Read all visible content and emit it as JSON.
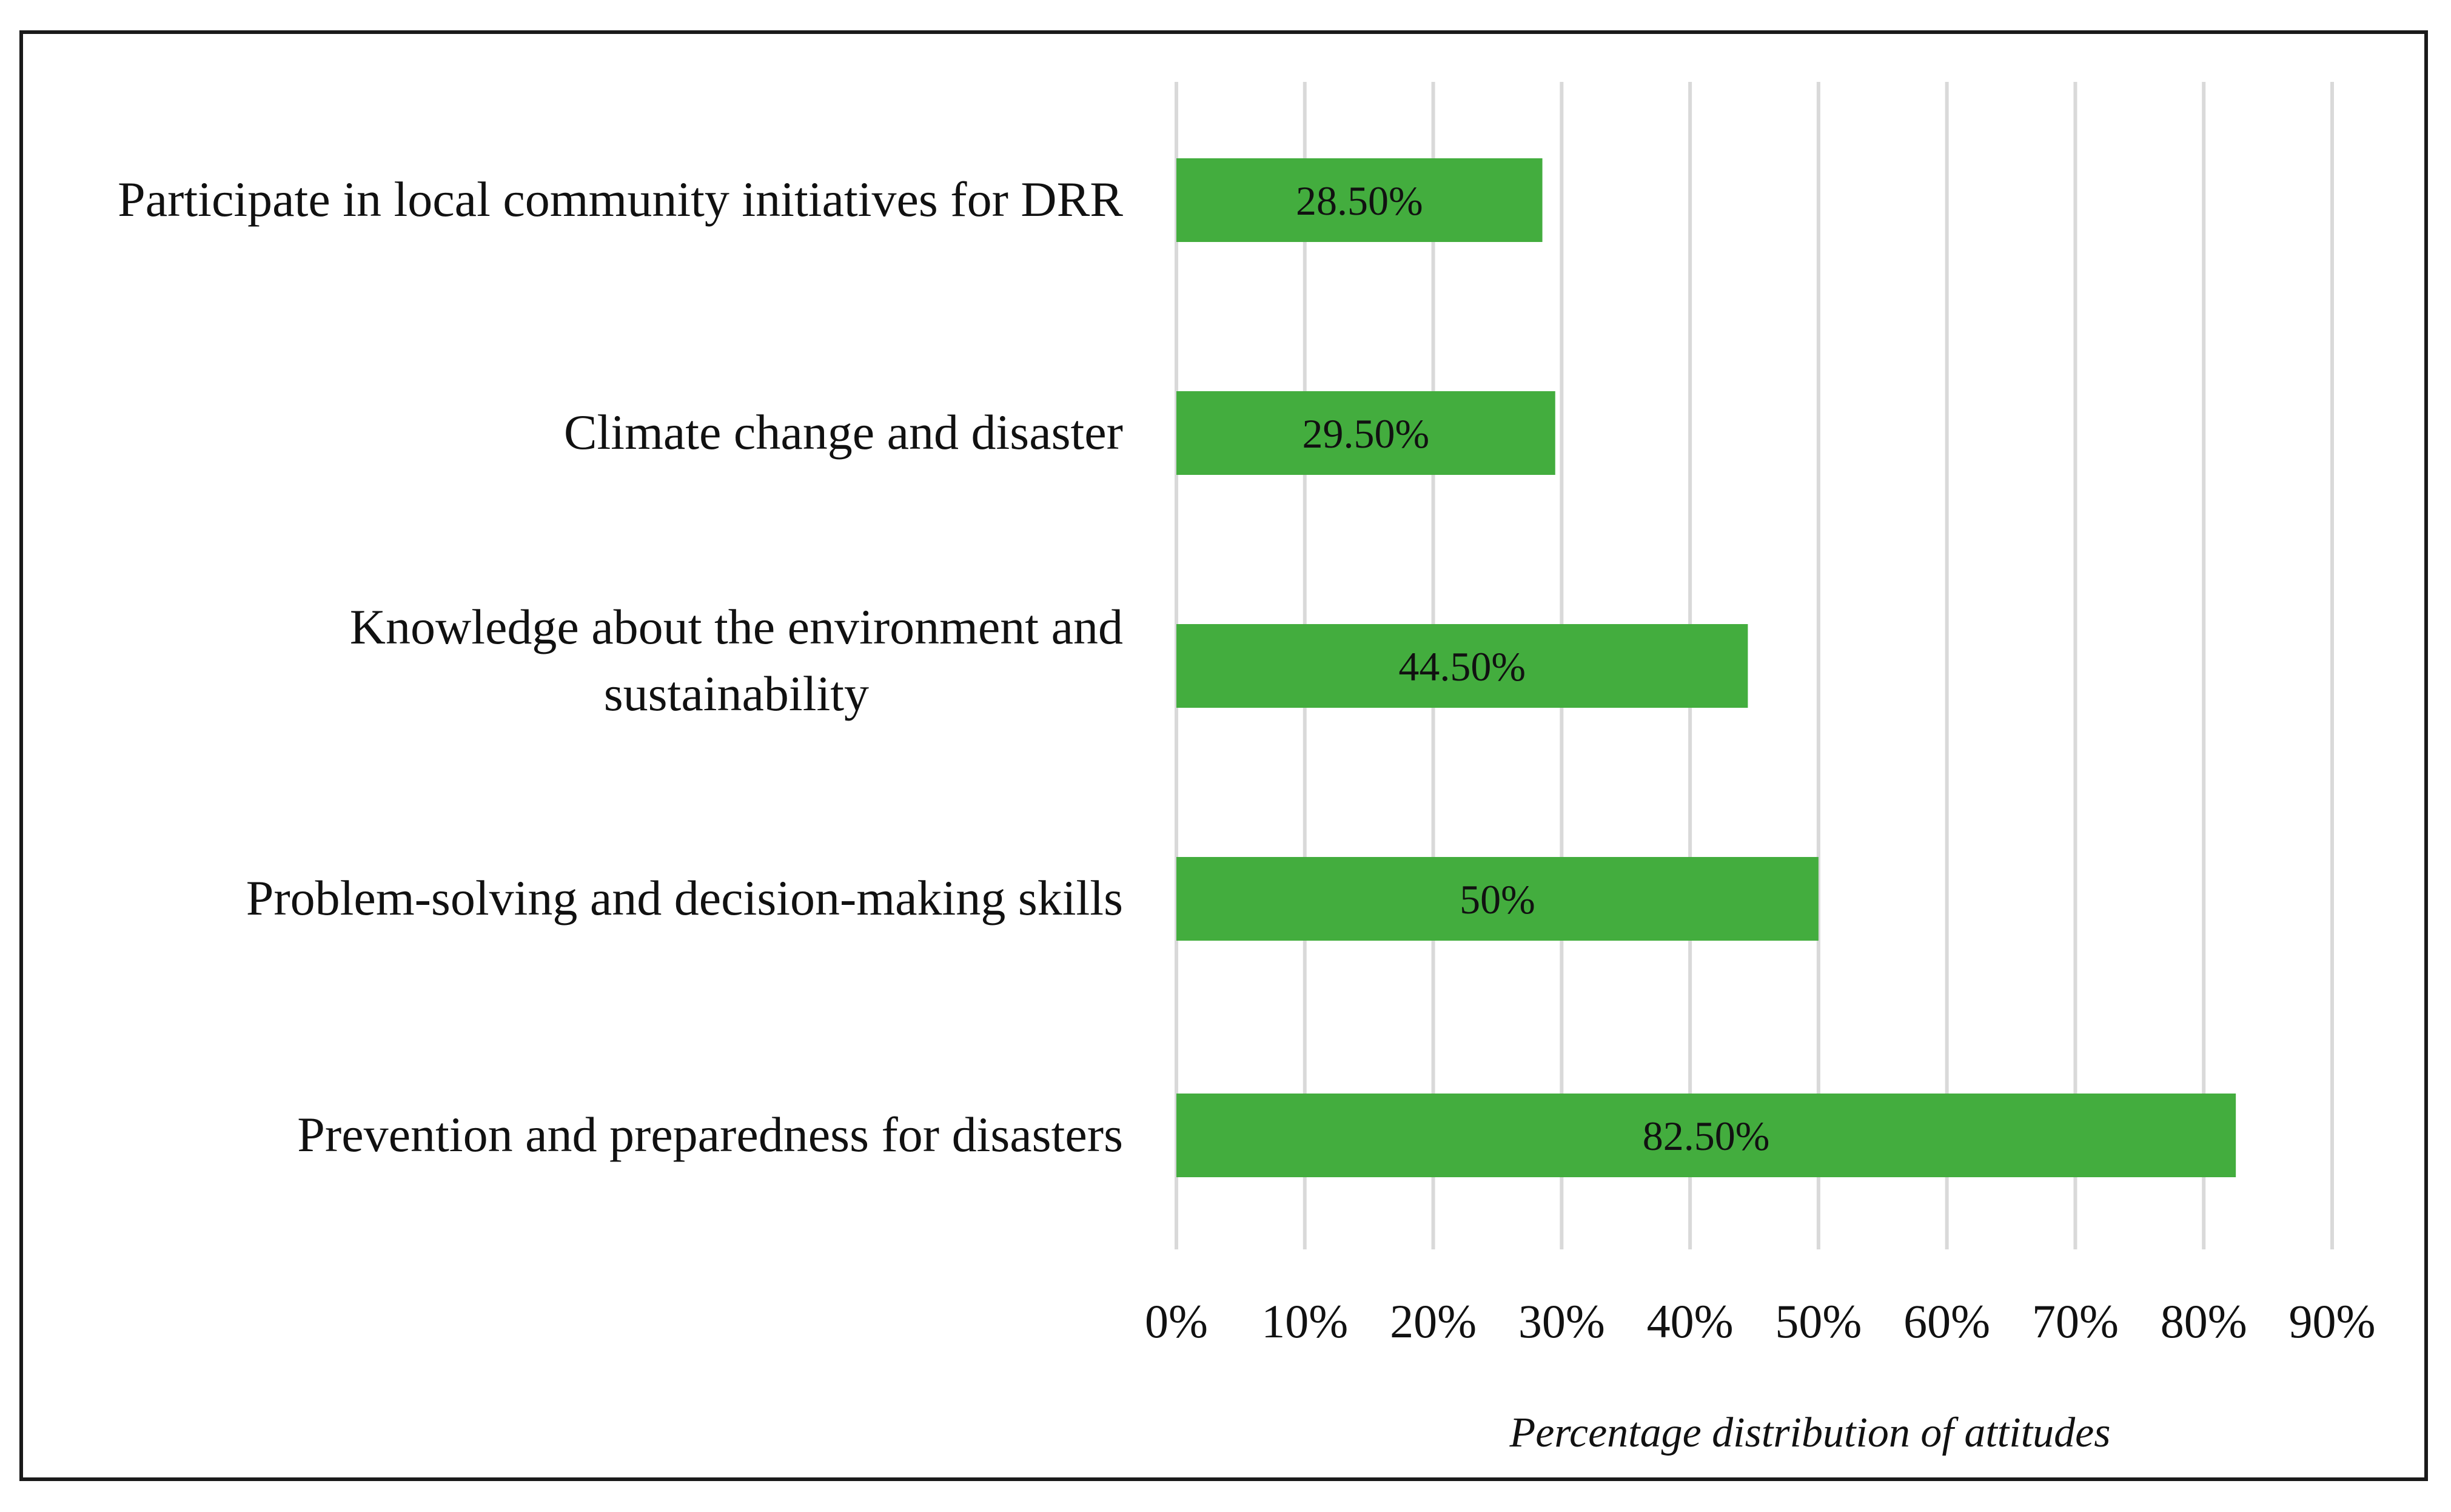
{
  "chart_data": {
    "type": "bar",
    "orientation": "horizontal",
    "categories": [
      [
        "Participate in local community initiatives for DRR"
      ],
      [
        "Climate change and disaster"
      ],
      [
        "Knowledge about the environment and",
        "sustainability"
      ],
      [
        "Problem-solving and decision-making skills"
      ],
      [
        "Prevention and preparedness for disasters"
      ]
    ],
    "values": [
      28.5,
      29.5,
      44.5,
      50,
      82.5
    ],
    "data_labels": [
      "28.50%",
      "29.50%",
      "44.50%",
      "50%",
      "82.50%"
    ],
    "xlim": [
      0,
      90
    ],
    "x_ticks": [
      0,
      10,
      20,
      30,
      40,
      50,
      60,
      70,
      80,
      90
    ],
    "x_tick_labels": [
      "0%",
      "10%",
      "20%",
      "30%",
      "40%",
      "50%",
      "60%",
      "70%",
      "80%",
      "90%"
    ],
    "xlabel": "Percentage distribution of attitudes",
    "ylabel": "",
    "title": "",
    "grid": "vertical",
    "legend": "none",
    "colors": {
      "bar": "#43ad3e",
      "grid": "#d9d9d9",
      "text": "#111111",
      "frame": "#1a1a1a"
    }
  }
}
